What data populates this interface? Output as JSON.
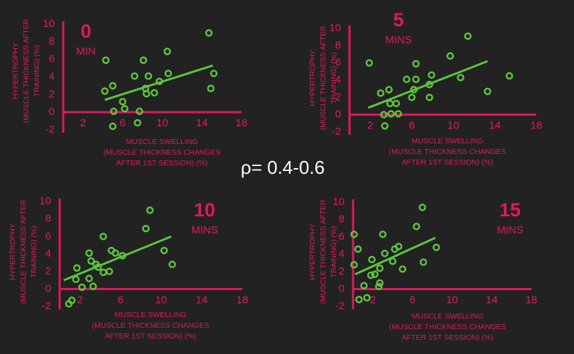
{
  "annotation": "ρ= 0.4-0.6",
  "chart_data": [
    {
      "type": "scatter",
      "title": "0",
      "subtitle": "MIN",
      "ylabel": [
        "HYPERTROPHY",
        "(MUSCLE THICKNESS AFTER",
        "TRAINING) (%)"
      ],
      "xlabel": [
        "MUSCLE SWELLING",
        "(MUSCLE THICKNESS CHANGES",
        "AFTER 1ST SESSION) (%)"
      ],
      "xlim": [
        0,
        18
      ],
      "ylim": [
        -2,
        10
      ],
      "xticks": [
        2,
        6,
        10,
        14,
        18
      ],
      "yticks": [
        -2,
        0,
        2,
        4,
        6,
        8,
        10
      ],
      "color": "#5cc43d",
      "axis_color": "#e0195f",
      "x": [
        4.3,
        4.2,
        5.0,
        5.1,
        5.0,
        6.0,
        6.2,
        7.2,
        7.5,
        7.7,
        8.1,
        8.3,
        8.4,
        8.6,
        9.2,
        9.7,
        10.6,
        10.5,
        14.7,
        15.2,
        14.9
      ],
      "values": [
        5.9,
        2.4,
        3.0,
        0.1,
        -1.6,
        1.2,
        0.4,
        4.1,
        -1.2,
        0.1,
        5.9,
        2.7,
        2.1,
        4.1,
        2.2,
        3.5,
        4.4,
        6.9,
        9.0,
        4.4,
        2.7
      ],
      "trendline": {
        "x": [
          4.2,
          15.1
        ],
        "values": [
          1.4,
          5.3
        ]
      }
    },
    {
      "type": "scatter",
      "title": "5",
      "subtitle": "MINS",
      "ylabel": [
        "HYPERTROPHY",
        "(MUSCLE THICKNESS AFTER",
        "TRAINING) (%)"
      ],
      "xlabel": [
        "MUSCLE SWELLING",
        "(MUSCLE THICKNESS CHANGES",
        "AFTER 1ST SESSION) (%)"
      ],
      "xlim": [
        0,
        18
      ],
      "ylim": [
        -2,
        10
      ],
      "xticks": [
        2,
        6,
        10,
        14,
        18
      ],
      "yticks": [
        -2,
        0,
        2,
        4,
        6,
        8,
        10
      ],
      "color": "#5cc43d",
      "axis_color": "#e0195f",
      "x": [
        1.9,
        3.0,
        3.8,
        3.9,
        3.3,
        3.4,
        4.0,
        4.5,
        4.7,
        5.5,
        6.0,
        6.2,
        6.4,
        6.4,
        7.7,
        7.7,
        7.9,
        9.7,
        10.7,
        11.4,
        13.3,
        15.4
      ],
      "values": [
        6.0,
        2.5,
        2.9,
        1.3,
        0.0,
        -1.3,
        0.1,
        1.3,
        0.1,
        4.1,
        2.0,
        2.9,
        4.1,
        5.9,
        2.0,
        3.5,
        4.6,
        6.8,
        4.3,
        9.1,
        2.7,
        4.5
      ],
      "trendline": {
        "x": [
          1.8,
          13.3
        ],
        "values": [
          0.8,
          6.2
        ]
      }
    },
    {
      "type": "scatter",
      "title": "10",
      "subtitle": "MINS",
      "ylabel": [
        "HYPERTROPHY",
        "(MUSCLE THICKNESS AFTER",
        "TRAINING) (%)"
      ],
      "xlabel": [
        "MUSCLE SWELLING",
        "(MUSCLE THICKNESS CHANGES",
        "AFTER 1ST SESSION) (%)"
      ],
      "xlim": [
        0,
        18
      ],
      "ylim": [
        -2,
        10
      ],
      "xticks": [
        2,
        6,
        10,
        14,
        18
      ],
      "yticks": [
        -2,
        0,
        2,
        4,
        6,
        8,
        10
      ],
      "color": "#5cc43d",
      "axis_color": "#e0195f",
      "x": [
        0.9,
        1.2,
        1.6,
        1.7,
        2.2,
        2.9,
        2.9,
        3.1,
        3.3,
        3.6,
        3.8,
        4.3,
        4.3,
        4.9,
        5.1,
        5.5,
        6.2,
        8.5,
        8.9,
        10.3,
        11.1
      ],
      "values": [
        -1.7,
        -1.3,
        1.1,
        2.4,
        0.2,
        4.1,
        1.2,
        3.2,
        0.3,
        2.8,
        2.5,
        1.9,
        6.0,
        2.0,
        4.4,
        4.1,
        3.8,
        6.9,
        9.0,
        4.4,
        2.8
      ],
      "trendline": {
        "x": [
          0.4,
          11.0
        ],
        "values": [
          1.0,
          6.0
        ]
      }
    },
    {
      "type": "scatter",
      "title": "15",
      "subtitle": "MINS",
      "ylabel": [
        "HYPERTROPHY",
        "(MUSCLE THICKNESS AFTER",
        "TRAINING) (%)"
      ],
      "xlabel": [
        "MUSCLE SWELLING",
        "(MUSCLE THICKNESS CHANGES",
        "AFTER 1ST SESSION) (%)"
      ],
      "xlim": [
        0,
        18
      ],
      "ylim": [
        -2,
        10
      ],
      "xticks": [
        2,
        6,
        10,
        14,
        18
      ],
      "yticks": [
        -2,
        0,
        2,
        4,
        6,
        8,
        10
      ],
      "color": "#5cc43d",
      "axis_color": "#e0195f",
      "x": [
        0.1,
        0.5,
        0.1,
        0.6,
        1.1,
        1.4,
        1.8,
        1.9,
        2.2,
        2.6,
        2.7,
        2.7,
        3.0,
        3.2,
        4.0,
        4.2,
        4.6,
        5.0,
        6.4,
        7.0,
        7.1,
        8.4
      ],
      "values": [
        6.3,
        4.6,
        2.8,
        -1.2,
        0.4,
        -1.0,
        1.6,
        3.4,
        1.7,
        0.3,
        0.7,
        2.4,
        6.3,
        4.1,
        3.2,
        4.6,
        4.9,
        2.3,
        7.2,
        9.4,
        3.1,
        4.8
      ],
      "trendline": {
        "x": [
          0.2,
          8.3
        ],
        "values": [
          1.7,
          5.9
        ]
      }
    }
  ]
}
